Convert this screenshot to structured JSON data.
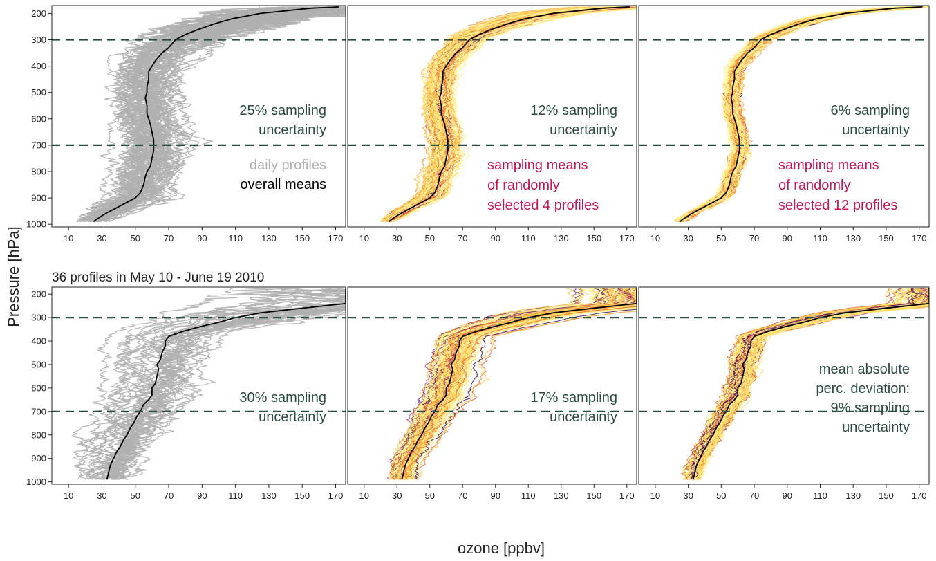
{
  "chart_data": {
    "type": "line",
    "xlabel": "ozone [ppbv]",
    "ylabel": "Pressure [hPa]",
    "xlim": [
      0,
      176
    ],
    "ylim": [
      1010,
      170
    ],
    "x_ticks": [
      10,
      30,
      50,
      70,
      90,
      110,
      130,
      150,
      170
    ],
    "y_ticks": [
      200,
      300,
      400,
      500,
      600,
      700,
      800,
      900,
      1000
    ],
    "reference_lines_hPa": [
      300,
      700
    ],
    "colors": {
      "daily_profiles": "#b0b0b0",
      "overall_mean": "#000000",
      "sampling_means": [
        "#fff3a0",
        "#ffe066",
        "#fbc440",
        "#f89a3a",
        "#e8602b",
        "#c23552",
        "#7a1f5c",
        "#2e0b4a"
      ],
      "annotation_uncertainty": "#2b4a44",
      "annotation_sampling": "#c2185b",
      "reference_line": "#2b4a44"
    },
    "rows": [
      {
        "title": "",
        "panels": [
          {
            "series_type": "daily profiles",
            "uncertainty_text": [
              "25% sampling",
              "uncertainty"
            ],
            "legend": [
              "daily profiles",
              "overall means"
            ],
            "mean_profile": {
              "pressure": [
                990,
                980,
                960,
                940,
                920,
                900,
                880,
                850,
                820,
                800,
                780,
                750,
                720,
                700,
                680,
                650,
                620,
                600,
                580,
                550,
                520,
                500,
                480,
                450,
                420,
                400,
                380,
                350,
                330,
                300,
                280,
                260,
                240,
                220,
                200,
                180,
                175
              ],
              "ozone": [
                25,
                27,
                32,
                38,
                44,
                50,
                53,
                55,
                56,
                57,
                59,
                60,
                61,
                61,
                61,
                60,
                59,
                58,
                57,
                57,
                56,
                57,
                57,
                58,
                58,
                60,
                62,
                66,
                70,
                74,
                80,
                88,
                97,
                108,
                125,
                155,
                172
              ]
            }
          },
          {
            "series_type": "sampling means",
            "uncertainty_text": [
              "12% sampling",
              "uncertainty"
            ],
            "sampling_text": [
              "sampling means",
              "of randomly",
              "selected 4 profiles"
            ]
          },
          {
            "series_type": "sampling means",
            "uncertainty_text": [
              "6% sampling",
              "uncertainty"
            ],
            "sampling_text": [
              "sampling means",
              "of randomly",
              "selected 12 profiles"
            ]
          }
        ]
      },
      {
        "title": "36 profiles in May 10 - June 19 2010",
        "panels": [
          {
            "series_type": "daily profiles",
            "uncertainty_text": [
              "30% sampling",
              "uncertainty"
            ],
            "mean_profile": {
              "pressure": [
                990,
                960,
                930,
                900,
                870,
                850,
                820,
                800,
                770,
                750,
                720,
                700,
                670,
                650,
                630,
                600,
                580,
                550,
                520,
                500,
                480,
                450,
                420,
                400,
                380,
                360,
                340,
                320,
                300,
                280,
                260,
                240
              ],
              "ozone": [
                33,
                34,
                35,
                37,
                39,
                41,
                43,
                45,
                47,
                49,
                51,
                53,
                55,
                58,
                60,
                60,
                62,
                63,
                64,
                63,
                65,
                66,
                68,
                68,
                70,
                78,
                88,
                100,
                110,
                125,
                150,
                176
              ]
            }
          },
          {
            "series_type": "sampling means",
            "uncertainty_text": [
              "17% sampling",
              "uncertainty"
            ]
          },
          {
            "series_type": "sampling means",
            "uncertainty_text": [
              "mean absolute",
              "perc. deviation:",
              "9% sampling",
              "uncertainty"
            ]
          }
        ]
      }
    ]
  }
}
